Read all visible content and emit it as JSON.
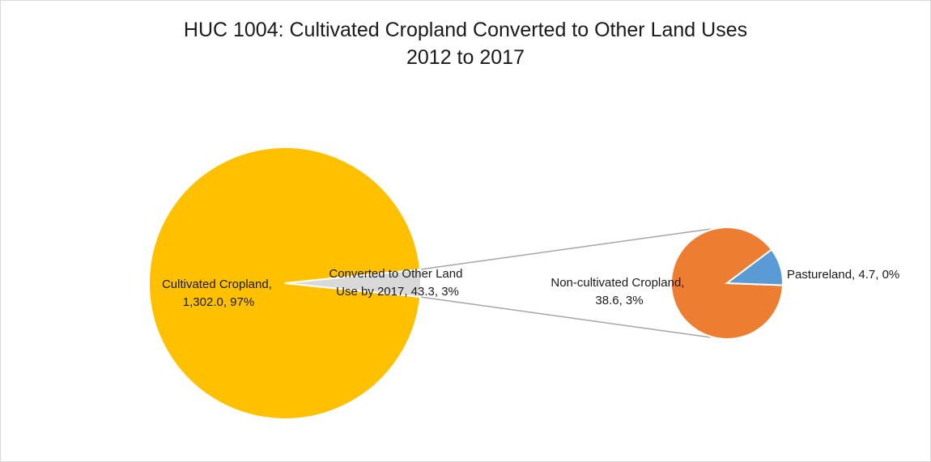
{
  "chart_data": {
    "type": "pie",
    "subtype": "pie-of-pie",
    "title": "HUC 1004: Cultivated Cropland Converted to Other Land Uses",
    "subtitle": "2012 to 2017",
    "primary": {
      "slices": [
        {
          "label_line1": "Cultivated Cropland,",
          "label_line2": "1,302.0, 97%",
          "value": 1302.0,
          "color": "#FFC000"
        },
        {
          "label_line1": "Converted to Other Land",
          "label_line2": "Use by 2017, 43.3, 3%",
          "value": 43.3,
          "color": "#D9D9D9"
        }
      ]
    },
    "secondary": {
      "slices": [
        {
          "label_line1": "Non-cultivated Cropland,",
          "label_line2": "38.6, 3%",
          "value": 38.6,
          "color": "#ED7D31"
        },
        {
          "label_line1": "Pastureland, 4.7, 0%",
          "label_line2": "",
          "value": 4.7,
          "color": "#5B9BD5"
        }
      ]
    },
    "connector_color": "#A6A6A6",
    "legend": "none"
  }
}
